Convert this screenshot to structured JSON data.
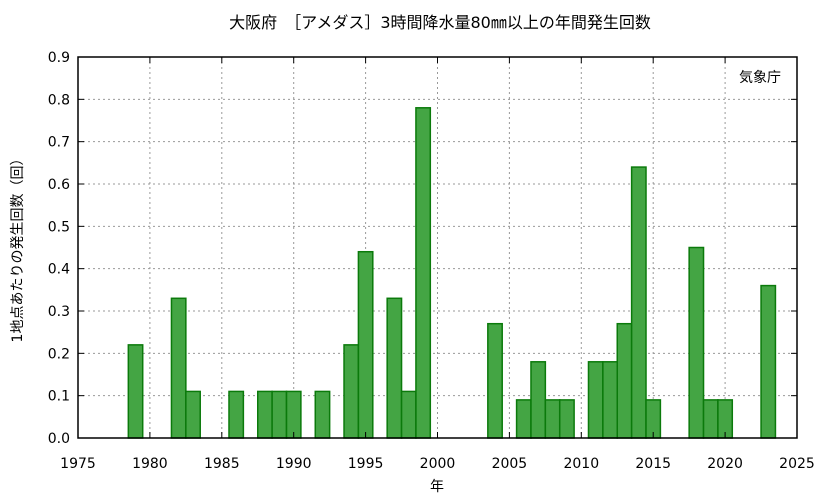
{
  "chart_data": {
    "type": "bar",
    "title": "大阪府　［アメダス］3時間降水量80㎜以上の年間発生回数",
    "xlabel": "年",
    "ylabel": "1地点あたりの発生回数（回）",
    "annotation": "気象庁",
    "xlim": [
      1975,
      2025
    ],
    "ylim": [
      0,
      0.9
    ],
    "x_ticks": [
      1975,
      1980,
      1985,
      1990,
      1995,
      2000,
      2005,
      2010,
      2015,
      2020,
      2025
    ],
    "y_ticks": [
      "0.0",
      "0.1",
      "0.2",
      "0.3",
      "0.4",
      "0.5",
      "0.6",
      "0.7",
      "0.8",
      "0.9"
    ],
    "grid": true,
    "bar_color": "#44a544",
    "bar_edge_color": "#0b7a0b",
    "years": [
      1976,
      1977,
      1978,
      1979,
      1980,
      1981,
      1982,
      1983,
      1984,
      1985,
      1986,
      1987,
      1988,
      1989,
      1990,
      1991,
      1992,
      1993,
      1994,
      1995,
      1996,
      1997,
      1998,
      1999,
      2000,
      2001,
      2002,
      2003,
      2004,
      2005,
      2006,
      2007,
      2008,
      2009,
      2010,
      2011,
      2012,
      2013,
      2014,
      2015,
      2016,
      2017,
      2018,
      2019,
      2020,
      2021,
      2022,
      2023
    ],
    "values": [
      0,
      0,
      0,
      0.22,
      0,
      0,
      0.33,
      0.11,
      0,
      0,
      0.11,
      0,
      0.11,
      0.11,
      0.11,
      0,
      0.11,
      0,
      0.22,
      0.44,
      0,
      0.33,
      0.11,
      0.78,
      0,
      0,
      0,
      0,
      0.27,
      0,
      0.09,
      0.18,
      0.09,
      0.09,
      0,
      0.18,
      0.18,
      0.27,
      0.64,
      0.09,
      0,
      0,
      0.45,
      0.09,
      0.09,
      0,
      0,
      0.36
    ]
  }
}
